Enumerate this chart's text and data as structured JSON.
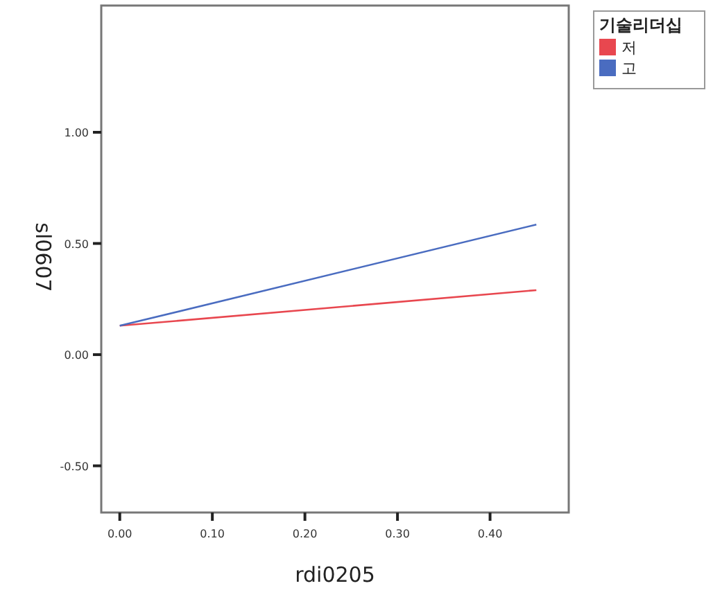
{
  "chart_data": {
    "type": "line",
    "xlabel": "rdi0205",
    "ylabel": "sl0607",
    "legend_title": "기술리더십",
    "legend": "top right",
    "xlim": [
      -0.02,
      0.485
    ],
    "ylim": [
      -0.71,
      1.57
    ],
    "xticks": [
      {
        "value": 0,
        "label": "0.00"
      },
      {
        "value": 0.1,
        "label": "0.10"
      },
      {
        "value": 0.2,
        "label": "0.20"
      },
      {
        "value": 0.3,
        "label": "0.30"
      },
      {
        "value": 0.4,
        "label": "0.40"
      }
    ],
    "yticks": [
      {
        "value": -0.5,
        "label": "-0.50"
      },
      {
        "value": 0,
        "label": "0.00"
      },
      {
        "value": 0.5,
        "label": "0.50"
      },
      {
        "value": 1,
        "label": "1.00"
      }
    ],
    "x": [
      0,
      0.45
    ],
    "series": [
      {
        "name": "저",
        "color": "#e8474f",
        "values": [
          0.13,
          0.29
        ]
      },
      {
        "name": "고",
        "color": "#4a6cc0",
        "values": [
          0.13,
          0.585
        ]
      }
    ]
  }
}
